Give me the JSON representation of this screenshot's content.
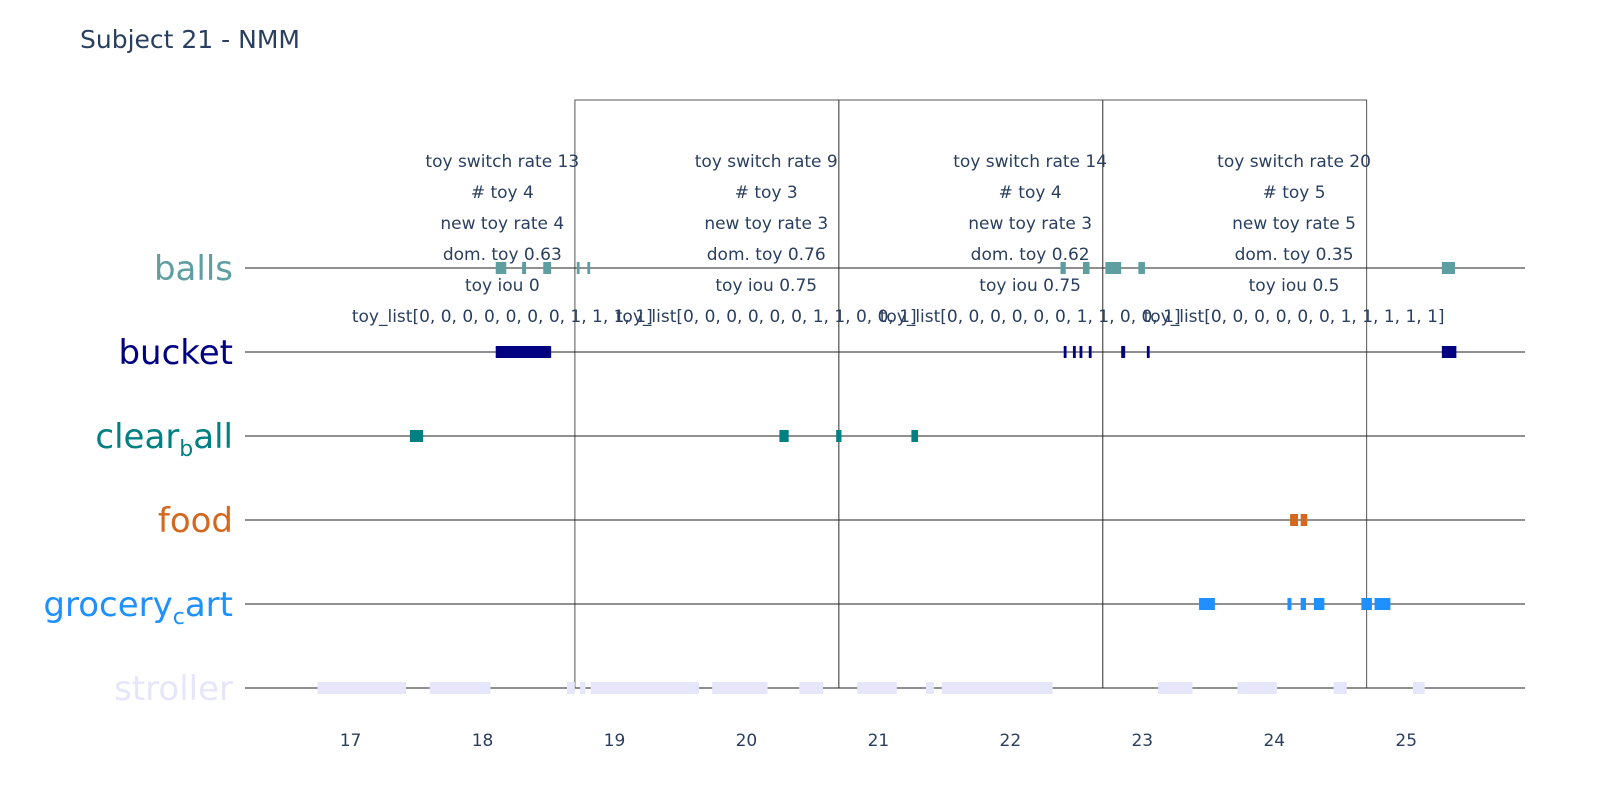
{
  "chart_data": {
    "type": "timeline",
    "title": "Subject 21 - NMM",
    "xlabel": "",
    "ylabel": "",
    "xlim": [
      16.2,
      25.9
    ],
    "x_ticks": [
      17,
      18,
      19,
      20,
      21,
      22,
      23,
      24,
      25
    ],
    "x_tick_labels": [
      "17",
      "18",
      "19",
      "20",
      "21",
      "22",
      "23",
      "24",
      "25"
    ],
    "grid": "horizontal lines at each category",
    "categories": [
      {
        "name": "balls",
        "label": "balls",
        "sub": "",
        "color": "#5f9ea0",
        "segments": [
          [
            18.1,
            18.18
          ],
          [
            18.3,
            18.33
          ],
          [
            18.46,
            18.52
          ],
          [
            18.72,
            18.73
          ],
          [
            18.8,
            18.81
          ],
          [
            22.38,
            22.42
          ],
          [
            22.55,
            22.6
          ],
          [
            22.72,
            22.84
          ],
          [
            22.97,
            23.02
          ],
          [
            25.27,
            25.37
          ]
        ]
      },
      {
        "name": "bucket",
        "label": "bucket",
        "sub": "",
        "color": "#000080",
        "segments": [
          [
            18.1,
            18.52
          ],
          [
            22.41,
            22.42
          ],
          [
            22.48,
            22.49
          ],
          [
            22.53,
            22.54
          ],
          [
            22.6,
            22.61
          ],
          [
            22.84,
            22.87
          ],
          [
            23.04,
            23.05
          ],
          [
            25.27,
            25.38
          ]
        ]
      },
      {
        "name": "clear_ball",
        "label": "clear",
        "sub": "b",
        "label2": "all",
        "color": "#008080",
        "segments": [
          [
            17.45,
            17.55
          ],
          [
            20.25,
            20.32
          ],
          [
            20.68,
            20.72
          ],
          [
            21.25,
            21.3
          ]
        ]
      },
      {
        "name": "food",
        "label": "food",
        "sub": "",
        "color": "#d2691e",
        "segments": [
          [
            24.12,
            24.18
          ],
          [
            24.2,
            24.25
          ]
        ]
      },
      {
        "name": "grocery_cart",
        "label": "grocery",
        "sub": "c",
        "label2": "art",
        "color": "#1e90ff",
        "segments": [
          [
            23.43,
            23.55
          ],
          [
            24.1,
            24.13
          ],
          [
            24.2,
            24.24
          ],
          [
            24.3,
            24.38
          ],
          [
            24.66,
            24.74
          ],
          [
            24.76,
            24.88
          ]
        ]
      },
      {
        "name": "stroller",
        "label": "stroller",
        "sub": "",
        "color": "#e6e6fa",
        "segments": [
          [
            16.75,
            17.42
          ],
          [
            17.6,
            18.06
          ],
          [
            18.64,
            18.7
          ],
          [
            18.74,
            18.78
          ],
          [
            18.82,
            19.64
          ],
          [
            19.74,
            20.16
          ],
          [
            20.4,
            20.58
          ],
          [
            20.84,
            21.14
          ],
          [
            21.36,
            21.42
          ],
          [
            21.48,
            22.32
          ],
          [
            23.12,
            23.38
          ],
          [
            23.72,
            24.02
          ],
          [
            24.45,
            24.55
          ],
          [
            25.05,
            25.14
          ]
        ]
      }
    ],
    "windows": [
      {
        "x0": 18.7,
        "x1": 20.7
      },
      {
        "x0": 20.7,
        "x1": 22.7
      },
      {
        "x0": 22.7,
        "x1": 24.7
      }
    ],
    "annotations": [
      {
        "x": 18.15,
        "lines": [
          "toy switch rate 13",
          "# toy 4",
          "new toy rate 4",
          "dom. toy 0.63",
          "toy iou 0",
          "toy_list[0, 0, 0, 0, 0, 0, 0, 1, 1, 1, 1]"
        ]
      },
      {
        "x": 20.15,
        "lines": [
          "toy switch rate 9",
          "# toy 3",
          "new toy rate 3",
          "dom. toy 0.76",
          "toy iou 0.75",
          "toy_list[0, 0, 0, 0, 0, 0, 1, 1, 0, 0, 1]"
        ]
      },
      {
        "x": 22.15,
        "lines": [
          "toy switch rate 14",
          "# toy 4",
          "new toy rate 3",
          "dom. toy 0.62",
          "toy iou 0.75",
          "toy_list[0, 0, 0, 0, 0, 0, 1, 1, 0, 0, 1]"
        ]
      },
      {
        "x": 24.15,
        "lines": [
          "toy switch rate 20",
          "# toy 5",
          "new toy rate 5",
          "dom. toy 0.35",
          "toy iou 0.5",
          "toy_list[0, 0, 0, 0, 0, 0, 1, 1, 1, 1, 1]"
        ]
      }
    ]
  }
}
